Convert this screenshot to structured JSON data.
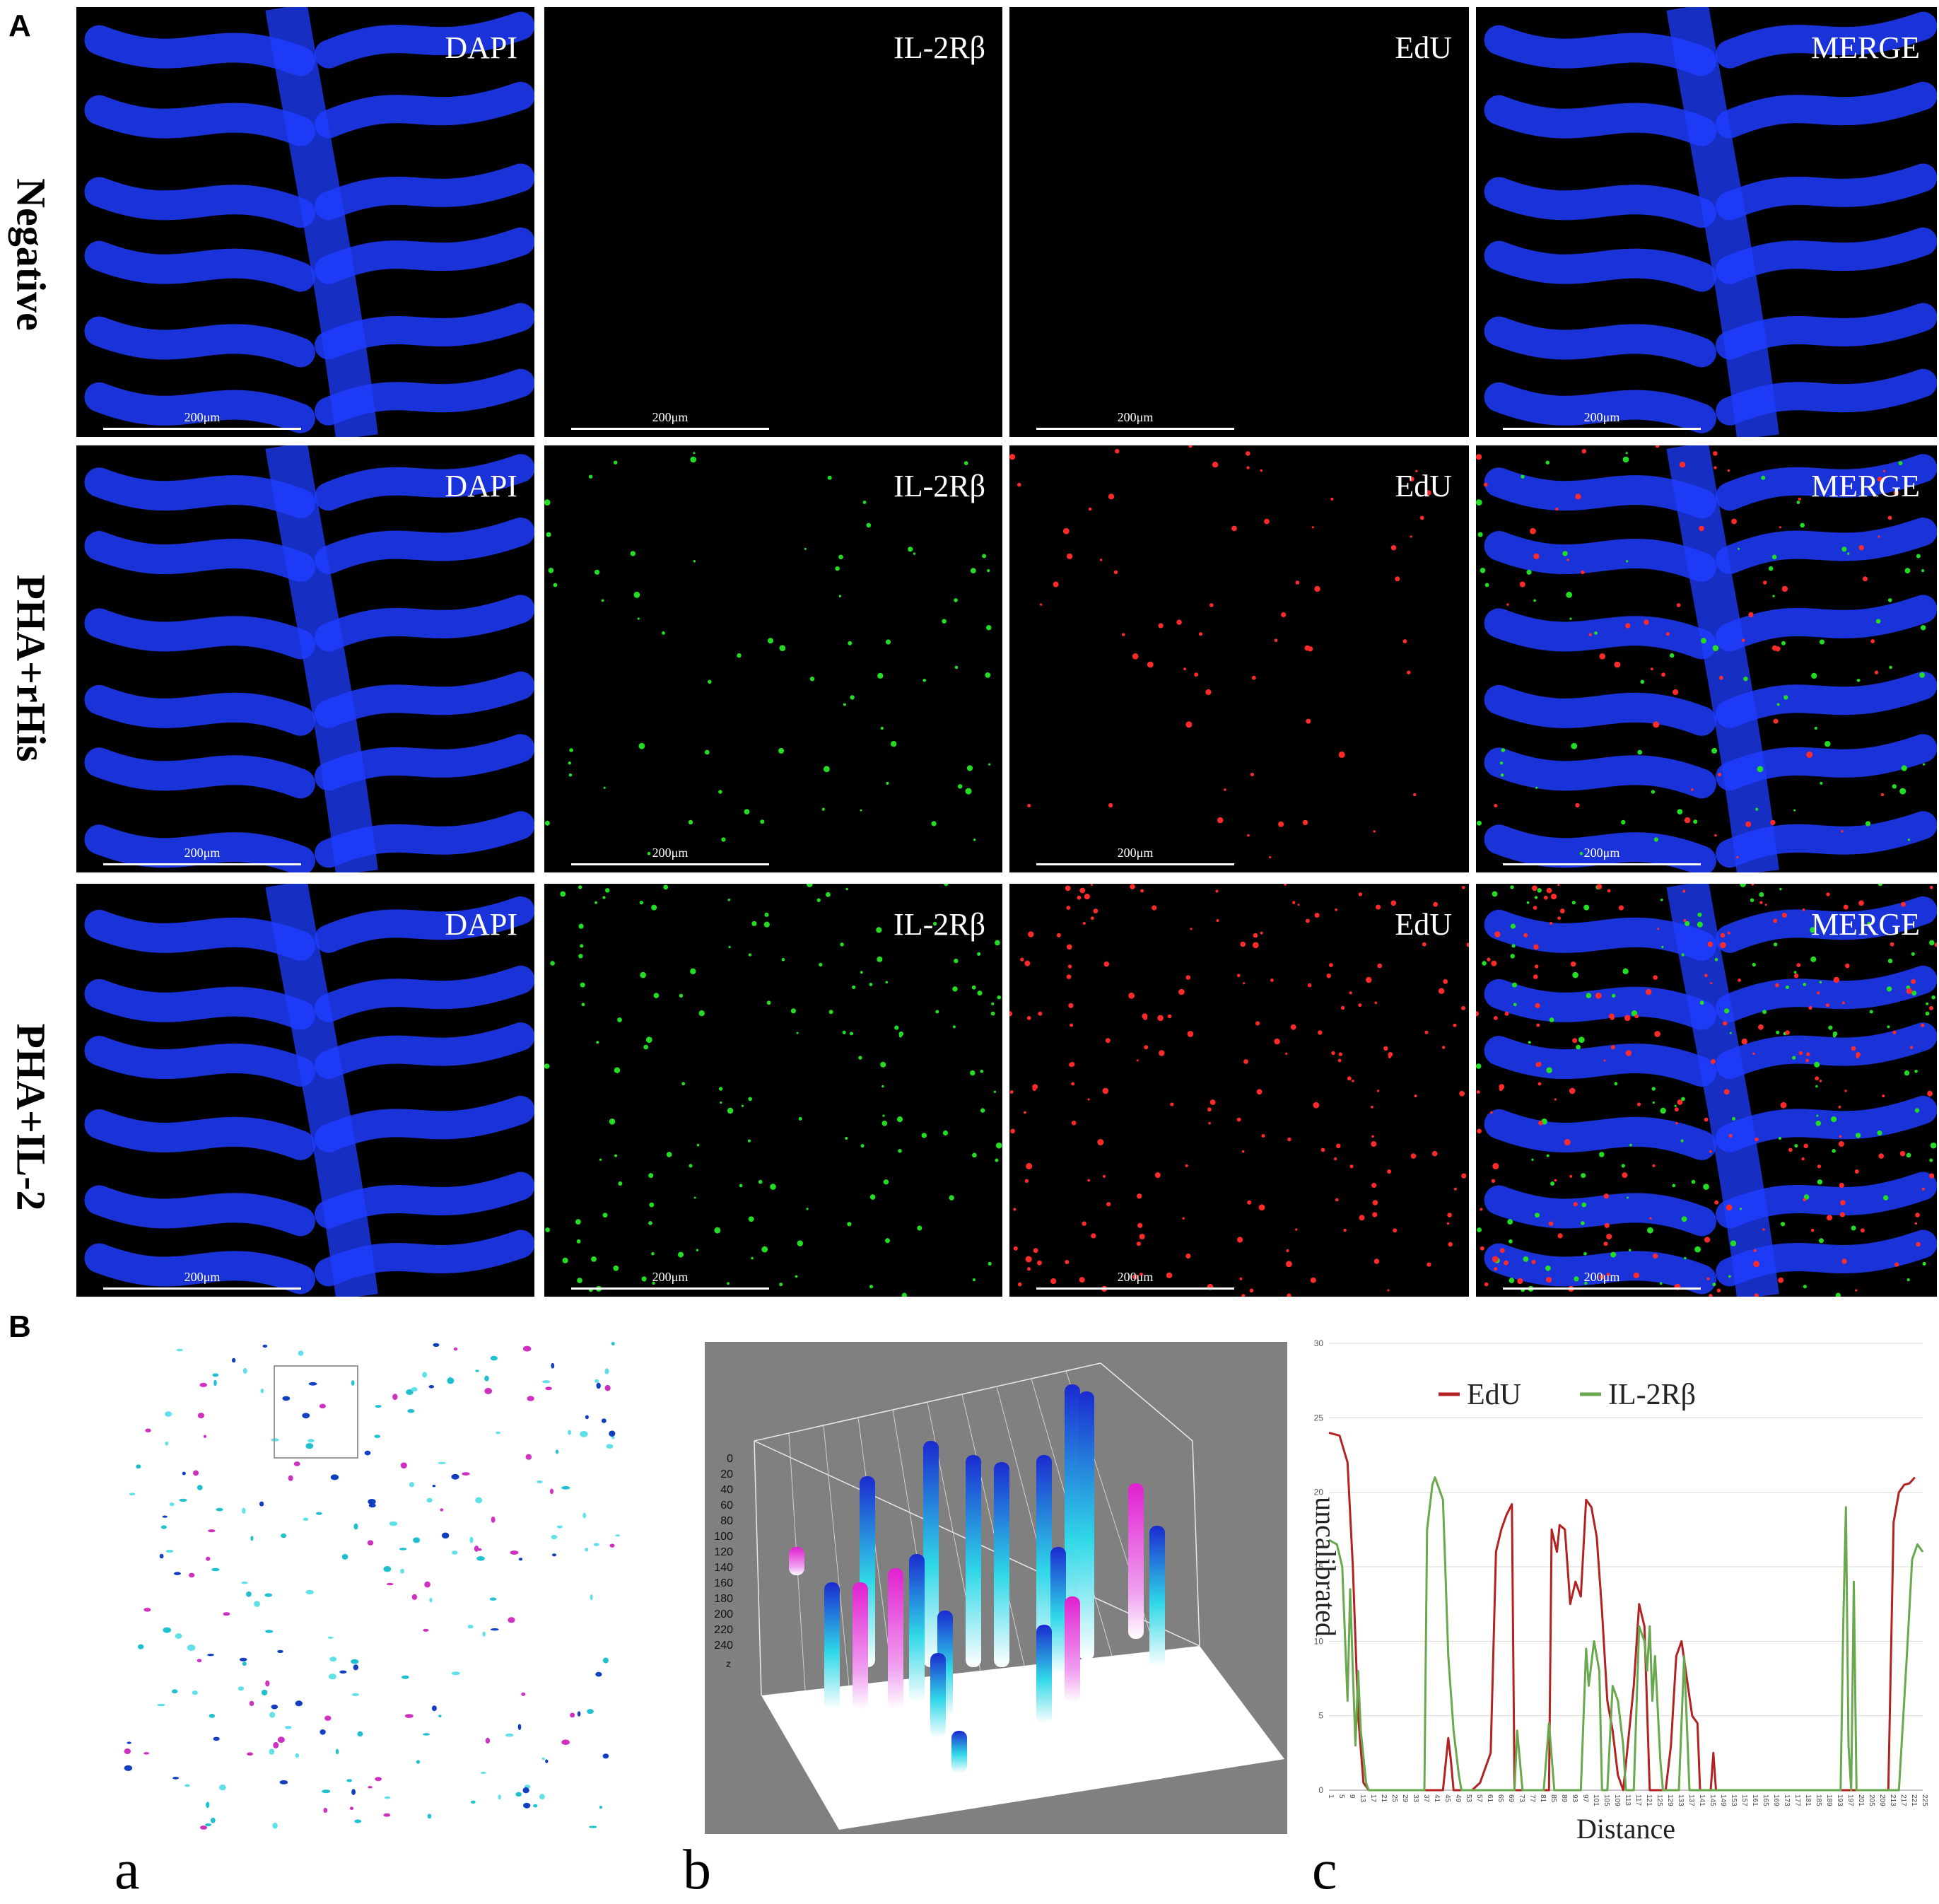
{
  "panel_labels": {
    "A": "A",
    "B": "B"
  },
  "rows": [
    {
      "label": "Negative",
      "channels": [
        "DAPI",
        "IL-2Rβ",
        "EdU",
        "MERGE"
      ],
      "scale": "200μm"
    },
    {
      "label": "PHA+rHis",
      "channels": [
        "DAPI",
        "IL-2Rβ",
        "EdU",
        "MERGE"
      ],
      "scale": "200μm"
    },
    {
      "label": "PHA+IL-2",
      "channels": [
        "DAPI",
        "IL-2Rβ",
        "EdU",
        "MERGE"
      ],
      "scale": "200μm"
    }
  ],
  "panel_b": {
    "sub_labels": [
      "a",
      "b",
      "c"
    ],
    "surface_plot": {
      "axis_ticks": [
        "0",
        "20",
        "40",
        "60",
        "80",
        "100",
        "120",
        "140",
        "160",
        "180",
        "200",
        "220",
        "240"
      ],
      "axis_z": "z",
      "background_color": "#808080"
    }
  },
  "chart_data": {
    "type": "line",
    "xlabel": "Distance",
    "ylabel": "uncalibrated",
    "ylim": [
      0,
      30
    ],
    "xlim": [
      1,
      225
    ],
    "y_ticks": [
      "0",
      "5",
      "10",
      "15",
      "20",
      "25",
      "30"
    ],
    "grid": true,
    "legend_position": "top-center",
    "colors": {
      "EdU": "#b22222",
      "IL-2Rβ": "#6aa84f"
    },
    "series": [
      {
        "name": "EdU",
        "points": [
          [
            1,
            24
          ],
          [
            5,
            23.8
          ],
          [
            8,
            22
          ],
          [
            10,
            15
          ],
          [
            12,
            5
          ],
          [
            14,
            0.5
          ],
          [
            16,
            0
          ],
          [
            40,
            0
          ],
          [
            44,
            0
          ],
          [
            46,
            3.5
          ],
          [
            47,
            2
          ],
          [
            48,
            0
          ],
          [
            52,
            0
          ],
          [
            55,
            0
          ],
          [
            58,
            0.5
          ],
          [
            60,
            1.5
          ],
          [
            62,
            2.5
          ],
          [
            64,
            16
          ],
          [
            66,
            17.5
          ],
          [
            68,
            18.5
          ],
          [
            70,
            19.2
          ],
          [
            71,
            0
          ],
          [
            84,
            0
          ],
          [
            85,
            17.5
          ],
          [
            87,
            16
          ],
          [
            88,
            17.8
          ],
          [
            90,
            17.5
          ],
          [
            92,
            12.5
          ],
          [
            94,
            14
          ],
          [
            96,
            13
          ],
          [
            98,
            19.5
          ],
          [
            100,
            19
          ],
          [
            102,
            17
          ],
          [
            104,
            12
          ],
          [
            106,
            6
          ],
          [
            108,
            4
          ],
          [
            110,
            1
          ],
          [
            112,
            0
          ],
          [
            116,
            7
          ],
          [
            118,
            12.5
          ],
          [
            120,
            11
          ],
          [
            122,
            0
          ],
          [
            128,
            0
          ],
          [
            130,
            3
          ],
          [
            132,
            9
          ],
          [
            134,
            10
          ],
          [
            136,
            7.5
          ],
          [
            138,
            5
          ],
          [
            140,
            4.5
          ],
          [
            141,
            0
          ],
          [
            145,
            0
          ],
          [
            146,
            2.5
          ],
          [
            147,
            0
          ],
          [
            212,
            0
          ],
          [
            214,
            18
          ],
          [
            216,
            20
          ],
          [
            218,
            20.5
          ],
          [
            220,
            20.6
          ],
          [
            222,
            21
          ]
        ]
      },
      {
        "name": "IL-2Rβ",
        "points": [
          [
            1,
            16.8
          ],
          [
            4,
            16.5
          ],
          [
            6,
            15
          ],
          [
            8,
            6
          ],
          [
            9,
            13.5
          ],
          [
            10,
            8
          ],
          [
            11,
            3
          ],
          [
            12,
            8
          ],
          [
            13,
            4
          ],
          [
            15,
            0.5
          ],
          [
            16,
            0
          ],
          [
            37,
            0
          ],
          [
            38,
            17.5
          ],
          [
            40,
            20.5
          ],
          [
            41,
            21
          ],
          [
            44,
            19.5
          ],
          [
            46,
            9
          ],
          [
            48,
            4
          ],
          [
            50,
            1
          ],
          [
            51,
            0
          ],
          [
            71,
            0
          ],
          [
            72,
            4
          ],
          [
            74,
            0
          ],
          [
            82,
            0
          ],
          [
            84,
            4.5
          ],
          [
            86,
            0
          ],
          [
            96,
            0
          ],
          [
            98,
            9.5
          ],
          [
            99,
            7
          ],
          [
            101,
            10
          ],
          [
            103,
            8
          ],
          [
            104,
            0
          ],
          [
            106,
            0
          ],
          [
            108,
            7
          ],
          [
            110,
            6
          ],
          [
            112,
            3
          ],
          [
            113,
            0
          ],
          [
            116,
            0
          ],
          [
            118,
            11
          ],
          [
            120,
            10
          ],
          [
            121,
            8
          ],
          [
            122,
            11
          ],
          [
            123,
            6
          ],
          [
            124,
            9
          ],
          [
            126,
            2
          ],
          [
            127,
            0
          ],
          [
            133,
            0
          ],
          [
            135,
            9
          ],
          [
            137,
            0
          ],
          [
            194,
            0
          ],
          [
            195,
            11
          ],
          [
            196,
            19
          ],
          [
            197,
            3
          ],
          [
            198,
            0
          ],
          [
            199,
            14
          ],
          [
            200,
            0
          ],
          [
            216,
            0
          ],
          [
            219,
            9
          ],
          [
            221,
            15.5
          ],
          [
            223,
            16.5
          ],
          [
            225,
            16
          ]
        ]
      }
    ],
    "legend_entries": [
      "EdU",
      "IL-2Rβ"
    ]
  }
}
